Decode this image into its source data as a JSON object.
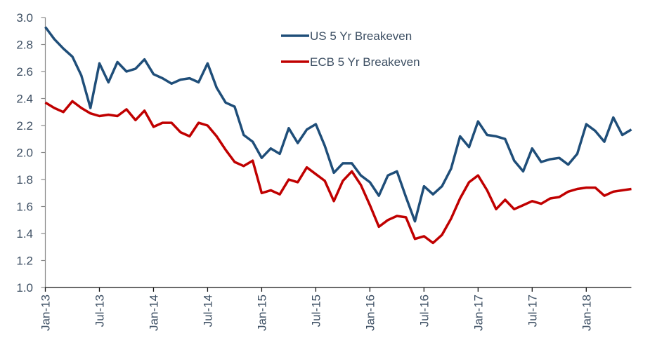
{
  "chart_data": {
    "type": "line",
    "title": "",
    "xlabel": "",
    "ylabel": "",
    "ylim": [
      1.0,
      3.0
    ],
    "yticks": [
      "1.0",
      "1.2",
      "1.4",
      "1.6",
      "1.8",
      "2.0",
      "2.2",
      "2.4",
      "2.6",
      "2.8",
      "3.0"
    ],
    "x_start": "Jan-13",
    "x_end": "Jun-18",
    "x_frequency": "monthly",
    "xtick_labels": [
      "Jan-13",
      "Jul-13",
      "Jan-14",
      "Jul-14",
      "Jan-15",
      "Jul-15",
      "Jan-16",
      "Jul-16",
      "Jan-17",
      "Jul-17",
      "Jan-18"
    ],
    "grid": false,
    "legend_position": "top-center",
    "series": [
      {
        "name": "US 5 Yr Breakeven",
        "color": "#1f4e79",
        "values": [
          2.93,
          2.84,
          2.77,
          2.71,
          2.57,
          2.33,
          2.66,
          2.52,
          2.67,
          2.6,
          2.62,
          2.69,
          2.58,
          2.55,
          2.51,
          2.54,
          2.55,
          2.52,
          2.66,
          2.48,
          2.37,
          2.34,
          2.13,
          2.08,
          1.96,
          2.03,
          1.99,
          2.18,
          2.07,
          2.17,
          2.21,
          2.05,
          1.85,
          1.92,
          1.92,
          1.83,
          1.78,
          1.68,
          1.83,
          1.86,
          1.67,
          1.49,
          1.75,
          1.69,
          1.75,
          1.88,
          2.12,
          2.04,
          2.23,
          2.13,
          2.12,
          2.1,
          1.94,
          1.86,
          2.03,
          1.93,
          1.95,
          1.96,
          1.91,
          1.99,
          2.21,
          2.16,
          2.08,
          2.26,
          2.13,
          2.17
        ]
      },
      {
        "name": "ECB 5 Yr Breakeven",
        "color": "#c00000",
        "values": [
          2.37,
          2.33,
          2.3,
          2.38,
          2.33,
          2.29,
          2.27,
          2.28,
          2.27,
          2.32,
          2.24,
          2.31,
          2.19,
          2.22,
          2.22,
          2.15,
          2.12,
          2.22,
          2.2,
          2.12,
          2.02,
          1.93,
          1.9,
          1.94,
          1.7,
          1.72,
          1.69,
          1.8,
          1.78,
          1.89,
          1.84,
          1.79,
          1.64,
          1.79,
          1.86,
          1.76,
          1.61,
          1.45,
          1.5,
          1.53,
          1.52,
          1.36,
          1.38,
          1.33,
          1.39,
          1.51,
          1.66,
          1.78,
          1.83,
          1.72,
          1.58,
          1.65,
          1.58,
          1.61,
          1.64,
          1.62,
          1.66,
          1.67,
          1.71,
          1.73,
          1.74,
          1.74,
          1.68,
          1.71,
          1.72,
          1.73
        ]
      }
    ]
  }
}
